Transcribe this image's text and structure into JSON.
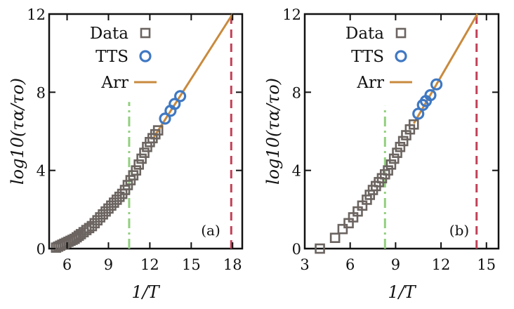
{
  "chart_data": [
    {
      "type": "scatter",
      "panel_label": "(a)",
      "xlabel": "1/T",
      "ylabel": "log10(τα/τo)",
      "xlim": [
        4.7,
        18.7
      ],
      "ylim": [
        0,
        12
      ],
      "xticks": [
        6,
        9,
        12,
        15,
        18
      ],
      "yticks": [
        0,
        4,
        8,
        12
      ],
      "legend_position": "top-left",
      "legend": [
        "Data",
        "TTS",
        "Arr"
      ],
      "colors": {
        "data": "#6b6460",
        "tts": "#3f78c2",
        "arr": "#c98a3d",
        "dashdot": "#92cf7e",
        "dashed": "#c24157"
      },
      "series": [
        {
          "name": "Data",
          "marker": "square",
          "points": [
            [
              5.2,
              0.05
            ],
            [
              5.35,
              0.1
            ],
            [
              5.5,
              0.15
            ],
            [
              5.65,
              0.2
            ],
            [
              5.8,
              0.25
            ],
            [
              5.95,
              0.3
            ],
            [
              6.1,
              0.35
            ],
            [
              6.25,
              0.4
            ],
            [
              6.4,
              0.45
            ],
            [
              6.55,
              0.5
            ],
            [
              6.7,
              0.58
            ],
            [
              6.85,
              0.66
            ],
            [
              7.0,
              0.74
            ],
            [
              7.2,
              0.84
            ],
            [
              7.4,
              0.95
            ],
            [
              7.6,
              1.05
            ],
            [
              7.8,
              1.15
            ],
            [
              8.0,
              1.3
            ],
            [
              8.2,
              1.45
            ],
            [
              8.4,
              1.6
            ],
            [
              8.6,
              1.75
            ],
            [
              8.8,
              1.9
            ],
            [
              9.0,
              2.05
            ],
            [
              9.2,
              2.2
            ],
            [
              9.4,
              2.35
            ],
            [
              9.6,
              2.5
            ],
            [
              9.8,
              2.65
            ],
            [
              10.0,
              2.8
            ],
            [
              10.2,
              3.0
            ],
            [
              10.4,
              3.25
            ],
            [
              10.6,
              3.5
            ],
            [
              10.8,
              3.75
            ],
            [
              11.0,
              4.0
            ],
            [
              11.2,
              4.3
            ],
            [
              11.4,
              4.6
            ],
            [
              11.6,
              4.9
            ],
            [
              11.8,
              5.2
            ],
            [
              12.0,
              5.45
            ],
            [
              12.2,
              5.65
            ],
            [
              12.4,
              5.85
            ],
            [
              12.6,
              6.05
            ]
          ]
        },
        {
          "name": "TTS",
          "marker": "circle",
          "points": [
            [
              13.1,
              6.65
            ],
            [
              13.5,
              7.05
            ],
            [
              13.8,
              7.4
            ],
            [
              14.2,
              7.8
            ]
          ]
        },
        {
          "name": "Arr",
          "marker": "line",
          "points": [
            [
              12.2,
              5.6
            ],
            [
              18.0,
              12.0
            ]
          ]
        }
      ],
      "vlines": [
        {
          "x": 10.5,
          "style": "dashdot",
          "color_key": "dashdot",
          "y": [
            0,
            7.5
          ]
        },
        {
          "x": 17.9,
          "style": "dashed",
          "color_key": "dashed",
          "y": [
            0,
            12
          ]
        }
      ]
    },
    {
      "type": "scatter",
      "panel_label": "(b)",
      "xlabel": "1/T",
      "ylabel": "log10(τα/τo)",
      "xlim": [
        3.0,
        15.8
      ],
      "ylim": [
        0,
        12
      ],
      "xticks": [
        3,
        6,
        9,
        12,
        15
      ],
      "yticks": [
        0,
        4,
        8,
        12
      ],
      "legend_position": "top-left",
      "legend": [
        "Data",
        "TTS",
        "Arr"
      ],
      "colors": {
        "data": "#6b6460",
        "tts": "#3f78c2",
        "arr": "#c98a3d",
        "dashdot": "#92cf7e",
        "dashed": "#c24157"
      },
      "series": [
        {
          "name": "Data",
          "marker": "square",
          "points": [
            [
              4.0,
              0.0
            ],
            [
              5.0,
              0.55
            ],
            [
              5.5,
              1.0
            ],
            [
              5.9,
              1.3
            ],
            [
              6.2,
              1.6
            ],
            [
              6.5,
              1.9
            ],
            [
              6.8,
              2.2
            ],
            [
              7.1,
              2.5
            ],
            [
              7.3,
              2.75
            ],
            [
              7.5,
              3.0
            ],
            [
              7.7,
              3.2
            ],
            [
              7.9,
              3.4
            ],
            [
              8.1,
              3.6
            ],
            [
              8.3,
              3.8
            ],
            [
              8.5,
              4.0
            ],
            [
              8.7,
              4.3
            ],
            [
              8.9,
              4.6
            ],
            [
              9.1,
              4.9
            ],
            [
              9.3,
              5.2
            ],
            [
              9.5,
              5.5
            ],
            [
              9.7,
              5.8
            ],
            [
              9.95,
              6.1
            ],
            [
              10.2,
              6.35
            ]
          ]
        },
        {
          "name": "TTS",
          "marker": "circle",
          "points": [
            [
              10.5,
              6.9
            ],
            [
              10.8,
              7.35
            ],
            [
              11.0,
              7.55
            ],
            [
              11.3,
              7.85
            ],
            [
              11.7,
              8.4
            ]
          ]
        },
        {
          "name": "Arr",
          "marker": "line",
          "points": [
            [
              10.2,
              6.4
            ],
            [
              14.4,
              12.0
            ]
          ]
        }
      ],
      "vlines": [
        {
          "x": 8.3,
          "style": "dashdot",
          "color_key": "dashdot",
          "y": [
            0,
            7.3
          ]
        },
        {
          "x": 14.35,
          "style": "dashed",
          "color_key": "dashed",
          "y": [
            0,
            12
          ]
        }
      ]
    }
  ]
}
